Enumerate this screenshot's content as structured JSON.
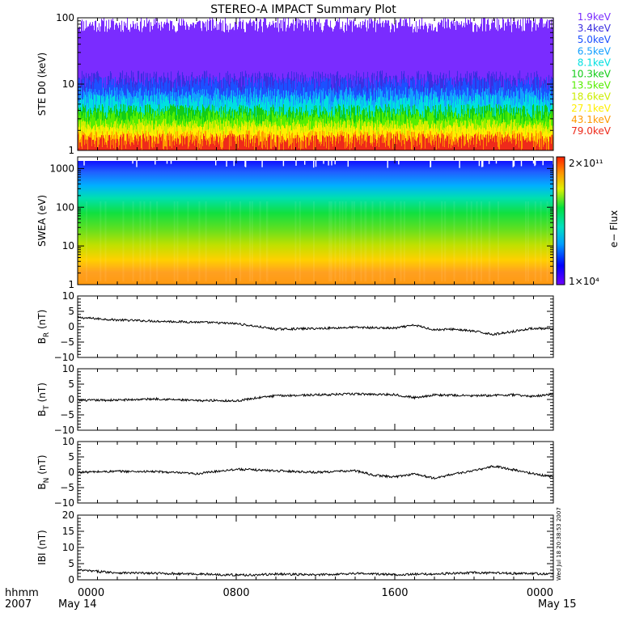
{
  "title": "STEREO-A IMPACT Summary Plot",
  "footer": {
    "axis_caption_line1": "hhmm",
    "axis_caption_line2": "2007",
    "start_time": "0000",
    "start_date": "May 14",
    "end_time": "0000",
    "end_date": "May 15"
  },
  "side_stamp": "Wed Jul 18 20:38:53 2007",
  "colors": {
    "ste_channels": [
      "#7a2cff",
      "#3b2ee0",
      "#1c50ff",
      "#14a0ff",
      "#00e0e0",
      "#12cc18",
      "#55ee00",
      "#ccee00",
      "#ffee00",
      "#ff9a00",
      "#ee2a1a"
    ],
    "line": "#000000",
    "axes": "#000000"
  },
  "chart_data": [
    {
      "id": "ste",
      "type": "line",
      "ylabel": "STE D0 (keV)",
      "yscale": "log",
      "ylim": [
        1,
        100
      ],
      "yticks": [
        "1",
        "10",
        "100"
      ],
      "xlim": [
        "0000",
        "2400"
      ],
      "xticks": [
        "0000",
        "0800",
        "1600",
        "0000"
      ],
      "series": [
        {
          "name": "1.9keV",
          "level_range": [
            60,
            100
          ]
        },
        {
          "name": "3.4keV",
          "level_range": [
            8,
            16
          ]
        },
        {
          "name": "5.0keV",
          "level_range": [
            7,
            13
          ]
        },
        {
          "name": "6.5keV",
          "level_range": [
            5,
            9
          ]
        },
        {
          "name": "8.1keV",
          "level_range": [
            4,
            7
          ]
        },
        {
          "name": "10.3keV",
          "level_range": [
            3,
            5
          ]
        },
        {
          "name": "13.5keV",
          "level_range": [
            2.5,
            4
          ]
        },
        {
          "name": "18.6keV",
          "level_range": [
            2,
            3
          ]
        },
        {
          "name": "27.1keV",
          "level_range": [
            1.7,
            2.5
          ]
        },
        {
          "name": "43.1keV",
          "level_range": [
            1.3,
            2
          ]
        },
        {
          "name": "79.0keV",
          "level_range": [
            1,
            1.8
          ]
        }
      ]
    },
    {
      "id": "swea",
      "type": "heatmap",
      "ylabel": "SWEA (eV)",
      "yscale": "log",
      "ylim": [
        1,
        2000
      ],
      "yticks": [
        "1",
        "10",
        "100",
        "1000"
      ],
      "xlim": [
        "0000",
        "2400"
      ],
      "xticks": [
        "0000",
        "0800",
        "1600",
        "0000"
      ],
      "colorbar": {
        "label": "e− Flux",
        "max_label": "2×10¹¹",
        "min_label": "1×10⁴",
        "range": [
          10000,
          200000000000
        ]
      }
    },
    {
      "id": "br",
      "type": "line",
      "ylabel_main": "B",
      "ylabel_sub": "R",
      "ylabel_unit": "(nT)",
      "ylim": [
        -10,
        10
      ],
      "yticks": [
        "10",
        "5",
        "0",
        "−5",
        "−10"
      ],
      "xlim": [
        "0000",
        "2400"
      ],
      "xticks": [
        "0000",
        "0800",
        "1600",
        "0000"
      ],
      "x_hours": [
        0,
        2,
        4,
        6,
        8,
        10,
        12,
        14,
        16,
        17,
        18,
        19,
        20,
        21,
        22,
        23,
        24
      ],
      "values": [
        3,
        2.2,
        1.8,
        1.5,
        1,
        -0.8,
        -0.6,
        -0.2,
        -0.5,
        0.5,
        -1,
        -0.8,
        -1.5,
        -2.5,
        -1.5,
        -0.5,
        -0.8
      ]
    },
    {
      "id": "bt",
      "type": "line",
      "ylabel_main": "B",
      "ylabel_sub": "T",
      "ylabel_unit": "(nT)",
      "ylim": [
        -10,
        10
      ],
      "yticks": [
        "10",
        "5",
        "0",
        "−5",
        "−10"
      ],
      "xlim": [
        "0000",
        "2400"
      ],
      "xticks": [
        "0000",
        "0800",
        "1600",
        "0000"
      ],
      "x_hours": [
        0,
        2,
        4,
        6,
        7,
        8,
        9,
        10,
        12,
        14,
        16,
        17,
        18,
        20,
        22,
        23,
        24
      ],
      "values": [
        -0.3,
        -0.2,
        0.2,
        -0.4,
        -0.3,
        -0.5,
        0.5,
        1.2,
        1.5,
        1.8,
        1.6,
        0.6,
        1.5,
        1.2,
        1.5,
        1.0,
        1.8
      ]
    },
    {
      "id": "bn",
      "type": "line",
      "ylabel_main": "B",
      "ylabel_sub": "N",
      "ylabel_unit": "(nT)",
      "ylim": [
        -10,
        10
      ],
      "yticks": [
        "10",
        "5",
        "0",
        "−5",
        "−10"
      ],
      "xlim": [
        "0000",
        "2400"
      ],
      "xticks": [
        "0000",
        "0800",
        "1600",
        "0000"
      ],
      "x_hours": [
        0,
        2,
        4,
        6,
        7,
        8,
        10,
        12,
        14,
        15,
        16,
        17,
        18,
        19,
        20,
        21,
        22,
        23,
        24
      ],
      "values": [
        0,
        0.3,
        0.2,
        -0.5,
        0.3,
        1.0,
        0.5,
        0,
        0.5,
        -1.0,
        -1.5,
        -0.5,
        -2.0,
        -0.5,
        0.5,
        2.0,
        0.8,
        -0.5,
        -1.5
      ]
    },
    {
      "id": "bmag",
      "type": "line",
      "ylabel_main": "IBI",
      "ylabel_sub": "",
      "ylabel_unit": "(nT)",
      "ylim": [
        0,
        20
      ],
      "yticks": [
        "20",
        "15",
        "10",
        "5",
        "0"
      ],
      "xlim": [
        "0000",
        "2400"
      ],
      "xticks": [
        "0000",
        "0800",
        "1600",
        "0000"
      ],
      "x_hours": [
        0,
        2,
        4,
        6,
        8,
        9,
        10,
        12,
        14,
        16,
        18,
        20,
        22,
        24
      ],
      "values": [
        3,
        2.2,
        2,
        1.8,
        1.5,
        1.5,
        1.8,
        1.5,
        2,
        1.6,
        1.8,
        2.2,
        2,
        1.8
      ]
    }
  ]
}
